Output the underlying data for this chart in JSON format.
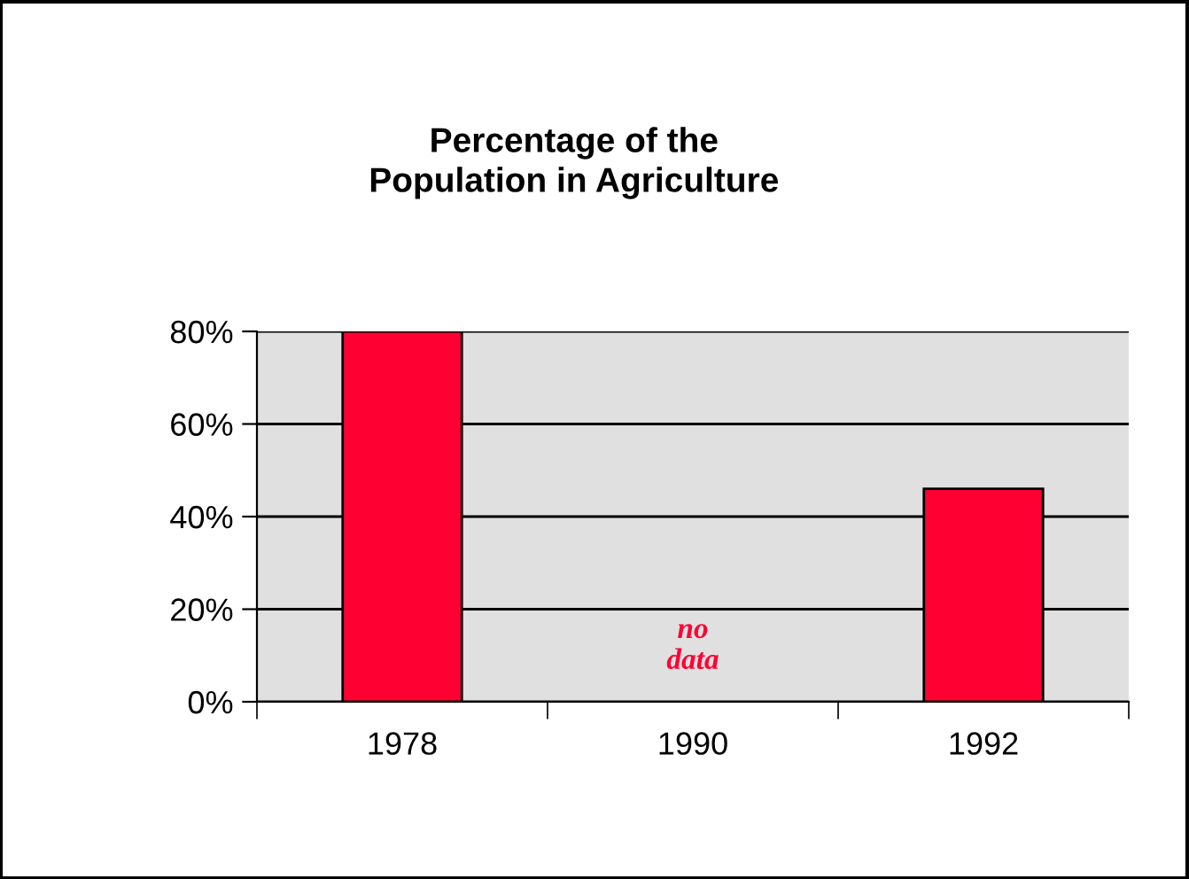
{
  "chart_data": {
    "type": "bar",
    "title": "Percentage of the\nPopulation in Agriculture",
    "categories": [
      "1978",
      "1990",
      "1992"
    ],
    "values": [
      80,
      null,
      46
    ],
    "color": "#ff0033",
    "ylim": [
      0,
      80
    ],
    "yticks": [
      {
        "value": 0,
        "label": "0%"
      },
      {
        "value": 20,
        "label": "20%"
      },
      {
        "value": 40,
        "label": "40%"
      },
      {
        "value": 60,
        "label": "60%"
      },
      {
        "value": 80,
        "label": "80%"
      }
    ],
    "grid": "y",
    "annotations": [
      "no\ndata"
    ]
  }
}
